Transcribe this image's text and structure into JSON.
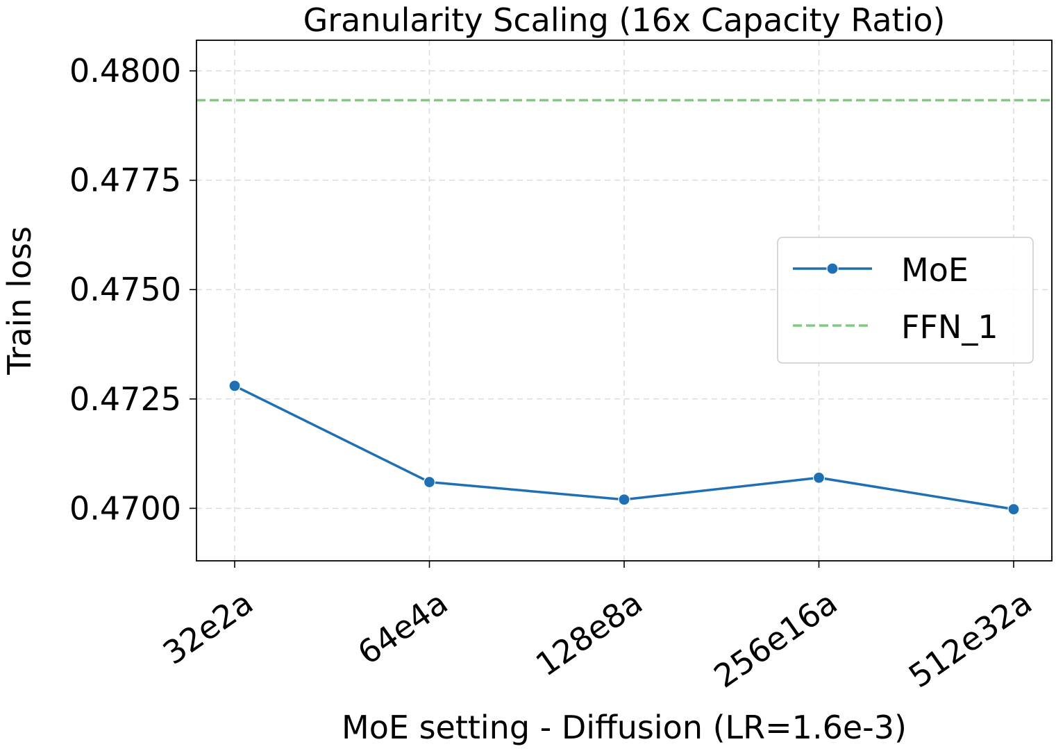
{
  "chart_data": {
    "type": "line",
    "title": "Granularity Scaling (16x Capacity Ratio)",
    "xlabel": "MoE setting - Diffusion (LR=1.6e-3)",
    "ylabel": "Train loss",
    "categories": [
      "32e2a",
      "64e4a",
      "128e8a",
      "256e16a",
      "512e32a"
    ],
    "series": [
      {
        "name": "MoE",
        "values": [
          0.4728,
          0.4706,
          0.4702,
          0.4707,
          0.46998
        ],
        "color": "#1f6fb4",
        "style": "solid",
        "marker": "circle"
      }
    ],
    "reference_lines": [
      {
        "name": "FFN_1",
        "value": 0.47933,
        "color": "#7fcc7f",
        "style": "dashed"
      }
    ],
    "ylim": [
      0.4688,
      0.4807
    ],
    "yticks": [
      "0.4700",
      "0.4725",
      "0.4750",
      "0.4775",
      "0.4800"
    ],
    "grid": true,
    "legend_position": "center-right"
  }
}
